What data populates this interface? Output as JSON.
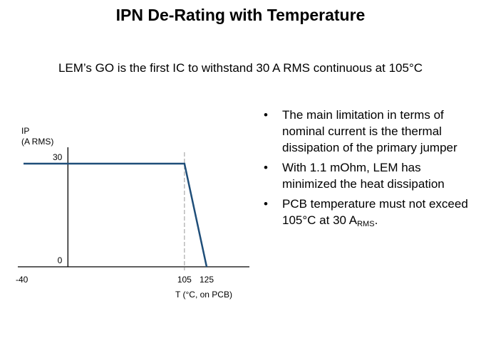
{
  "slide": {
    "title": "IPN De-Rating with Temperature",
    "subtitle": "LEM’s GO is the first IC to withstand 30 A RMS continuous at 105°C"
  },
  "chart_data": {
    "type": "line",
    "x": [
      -40,
      105,
      125
    ],
    "series": [
      {
        "values": [
          30,
          30,
          0
        ],
        "color": "#1f4e79"
      }
    ],
    "ylabel_line1": "IP",
    "ylabel_line2": "(A RMS)",
    "xlabel": "T (°C, on PCB)",
    "x_ticks": [
      {
        "value": -40,
        "label": "-40"
      },
      {
        "value": 105,
        "label": "105"
      },
      {
        "value": 125,
        "label": "125"
      }
    ],
    "y_ticks": [
      {
        "value": 0,
        "label": "0"
      },
      {
        "value": 30,
        "label": "30"
      }
    ],
    "xlim": [
      -40,
      125
    ],
    "ylim": [
      0,
      30
    ],
    "guide_x": 105,
    "grid": false,
    "legend": "none"
  },
  "bullets": [
    {
      "text": "The main limitation in terms of nominal current is the thermal dissipation of the primary jumper"
    },
    {
      "text": "With 1.1 mOhm,  LEM has minimized  the heat dissipation"
    },
    {
      "text": "PCB temperature must not exceed 105°C at 30 A",
      "sub": "RMS",
      "tail": "."
    }
  ],
  "bullet_char": "•"
}
